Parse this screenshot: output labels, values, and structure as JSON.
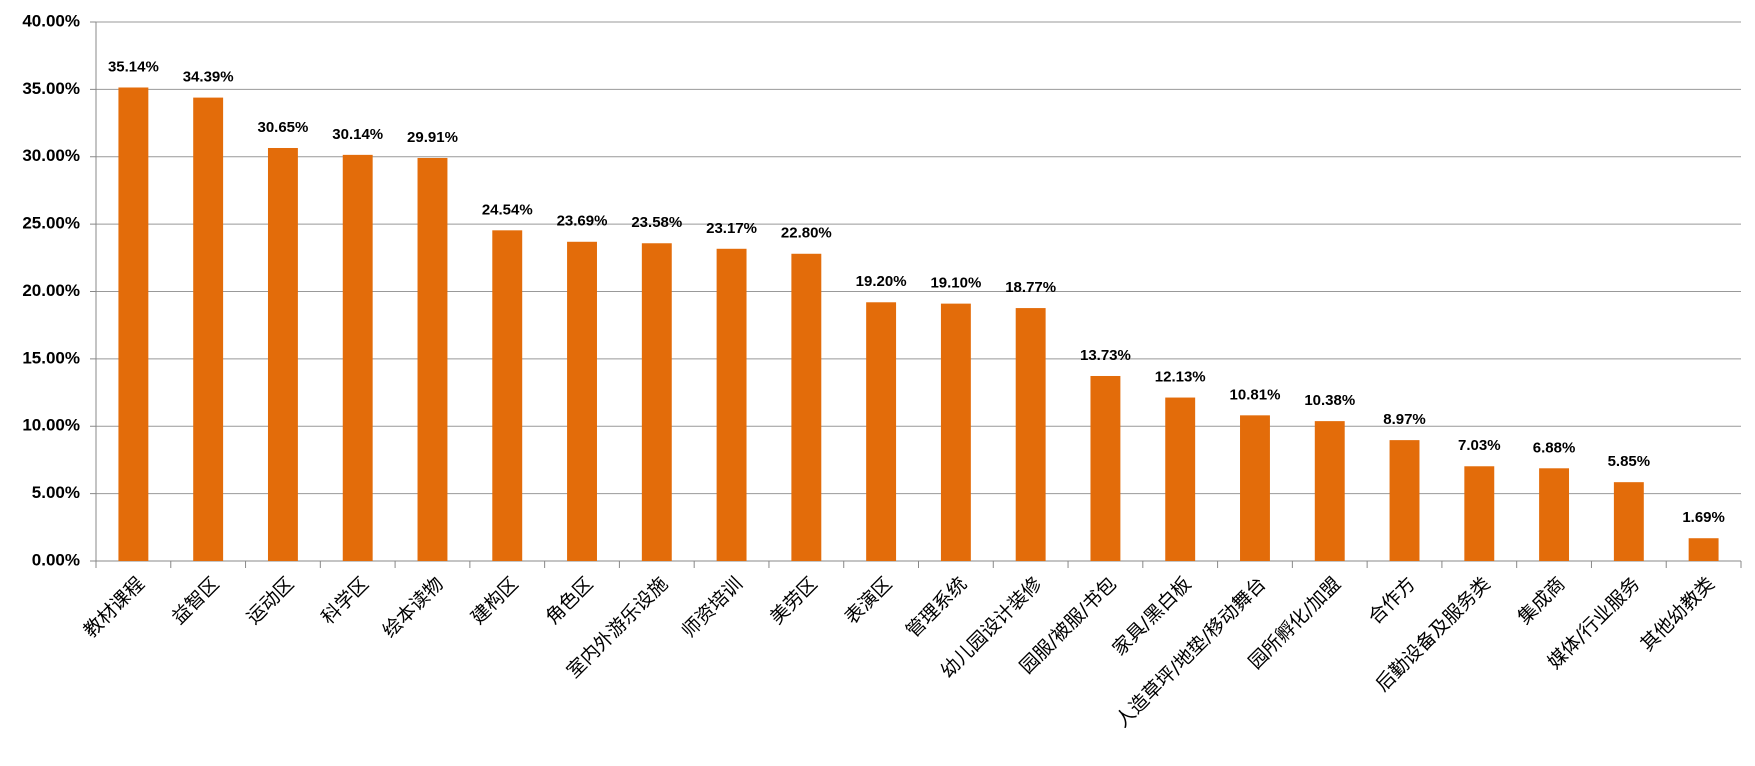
{
  "chart_data": {
    "type": "bar",
    "categories": [
      "教材课程",
      "益智区",
      "运动区",
      "科学区",
      "绘本读物",
      "建构区",
      "角色区",
      "室内外游乐设施",
      "师资培训",
      "美劳区",
      "表演区",
      "管理系统",
      "幼儿园设计装修",
      "园服/被服/书包",
      "家具/黑白板",
      "人造草坪/地垫/移动舞台",
      "园所孵化/加盟",
      "合作方",
      "后勤设备及服务类",
      "集成商",
      "媒体/行业服务",
      "其他幼教类"
    ],
    "values": [
      35.14,
      34.39,
      30.65,
      30.14,
      29.91,
      24.54,
      23.69,
      23.58,
      23.17,
      22.8,
      19.2,
      19.1,
      18.77,
      13.73,
      12.13,
      10.81,
      10.38,
      8.97,
      7.03,
      6.88,
      5.85,
      1.69
    ],
    "value_labels": [
      "35.14%",
      "34.39%",
      "30.65%",
      "30.14%",
      "29.91%",
      "24.54%",
      "23.69%",
      "23.58%",
      "23.17%",
      "22.80%",
      "19.20%",
      "19.10%",
      "18.77%",
      "13.73%",
      "12.13%",
      "10.81%",
      "10.38%",
      "8.97%",
      "7.03%",
      "6.88%",
      "5.85%",
      "1.69%"
    ],
    "color": "#E36C0A",
    "ylim": [
      0,
      40
    ],
    "yticks": [
      {
        "value": 0,
        "label": "0.00%"
      },
      {
        "value": 5,
        "label": "5.00%"
      },
      {
        "value": 10,
        "label": "10.00%"
      },
      {
        "value": 15,
        "label": "15.00%"
      },
      {
        "value": 20,
        "label": "20.00%"
      },
      {
        "value": 25,
        "label": "25.00%"
      },
      {
        "value": 30,
        "label": "30.00%"
      },
      {
        "value": 35,
        "label": "35.00%"
      },
      {
        "value": 40,
        "label": "40.00%"
      }
    ],
    "grid": true
  }
}
